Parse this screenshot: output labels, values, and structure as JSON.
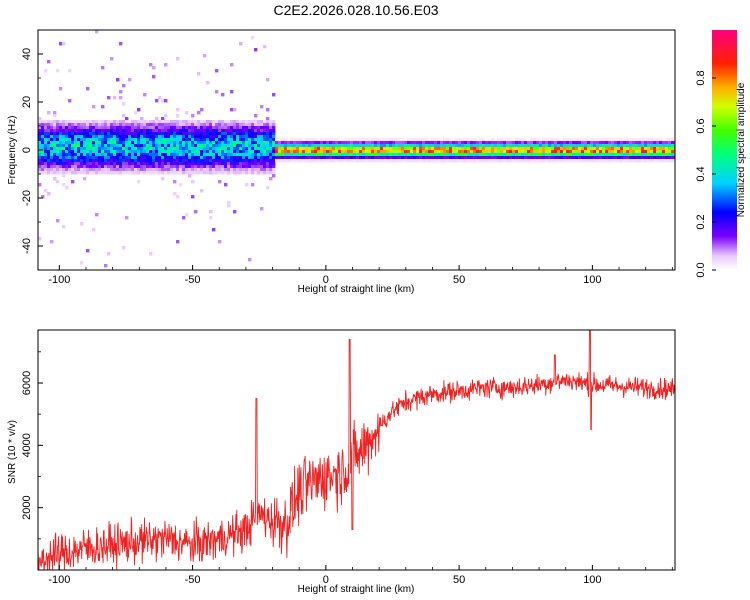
{
  "page_title": "C2E2.2026.028.10.56.E03",
  "chart_data": [
    {
      "type": "heatmap",
      "title": "C2E2.2026.028.10.56.E03",
      "xlabel": "Height of straight line (km)",
      "ylabel": "Frequency (Hz)",
      "xlim": [
        -108,
        131
      ],
      "ylim": [
        -50,
        50
      ],
      "x_ticks": [
        -100,
        -50,
        0,
        50,
        100
      ],
      "x_tick_labels": [
        "-100",
        "-50",
        "0",
        "50",
        "100"
      ],
      "y_ticks": [
        -40,
        -20,
        0,
        20,
        40
      ],
      "y_tick_labels": [
        "-40",
        "-20",
        "0",
        "20",
        "40"
      ],
      "colorbar": {
        "label": "Normalized spectral amplitude",
        "range": [
          0,
          1
        ],
        "ticks": [
          0.0,
          0.2,
          0.4,
          0.6,
          0.8
        ],
        "tick_labels": [
          "0.0",
          "0.2",
          "0.4",
          "0.6",
          "0.8"
        ],
        "colormap": "rainbow (white/purple to red/magenta)"
      },
      "bands": [
        {
          "x_range": [
            -108,
            -20
          ],
          "freq_center": 2,
          "freq_halfwidth": 8,
          "peak_amplitude": 0.45,
          "scatter": "wide"
        },
        {
          "x_range": [
            -20,
            131
          ],
          "freq_center": 0.5,
          "freq_halfwidth": 3,
          "peak_amplitude": 0.95,
          "scatter": "narrow"
        }
      ]
    },
    {
      "type": "line",
      "xlabel": "Height of straight line (km)",
      "ylabel": "SNR (10 * v/v)",
      "xlim": [
        -108,
        131
      ],
      "ylim": [
        0,
        7700
      ],
      "x_ticks": [
        -100,
        -50,
        0,
        50,
        100
      ],
      "x_tick_labels": [
        "-100",
        "-50",
        "0",
        "50",
        "100"
      ],
      "y_ticks": [
        2000,
        4000,
        6000
      ],
      "y_tick_labels": [
        "2000",
        "4000",
        "6000"
      ],
      "series": [
        {
          "name": "SNR",
          "color": "#ee2222",
          "envelope": {
            "x": [
              -108,
              -100,
              -90,
              -80,
              -70,
              -60,
              -50,
              -40,
              -30,
              -25,
              -20,
              -15,
              -10,
              -5,
              0,
              5,
              8,
              10,
              15,
              20,
              25,
              30,
              40,
              50,
              60,
              70,
              80,
              90,
              100,
              110,
              120,
              131
            ],
            "y": [
              300,
              500,
              700,
              800,
              900,
              1000,
              800,
              1000,
              1300,
              1800,
              1600,
              1500,
              2500,
              2800,
              3000,
              3100,
              3300,
              3500,
              4000,
              4600,
              5100,
              5400,
              5650,
              5750,
              5850,
              5850,
              5950,
              6100,
              5950,
              5900,
              5850,
              5800
            ]
          },
          "noise": [
            {
              "x_range": [
                -108,
                -20
              ],
              "amplitude": 600
            },
            {
              "x_range": [
                -20,
                20
              ],
              "amplitude": 900
            },
            {
              "x_range": [
                20,
                131
              ],
              "amplitude": 300
            }
          ],
          "spikes": [
            {
              "x": -26,
              "y": 5500
            },
            {
              "x": 9,
              "y": 7400
            },
            {
              "x": 10,
              "y": 1300
            },
            {
              "x": 86,
              "y": 6900
            },
            {
              "x": 99,
              "y": 7700
            },
            {
              "x": 99.5,
              "y": 4500
            }
          ]
        }
      ]
    }
  ]
}
